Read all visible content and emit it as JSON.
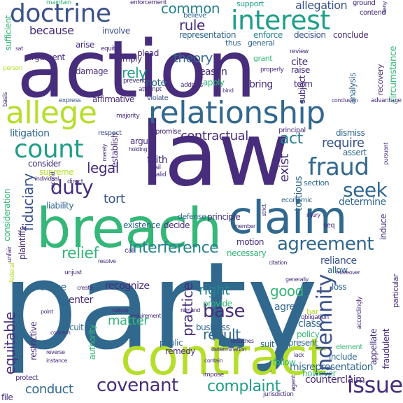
{
  "words": {
    "action": "action",
    "law": "law",
    "party": "party",
    "contract": "contract",
    "breach": "breach",
    "claim": "claim",
    "relationship": "relationship",
    "doctrine": "doctrine",
    "interest": "interest",
    "allege": "allege",
    "count": "count",
    "fraud": "fraud",
    "duty": "duty",
    "agreement": "agreement",
    "covenant": "covenant",
    "issue": "issue",
    "indemnity": "indemnity",
    "complaint": "complaint",
    "base": "base",
    "seek": "seek",
    "right": "right",
    "fiduciary": "fiduciary",
    "equitable": "equitable",
    "interference": "interference",
    "relief": "relief",
    "rely": "rely",
    "rule": "rule",
    "theory": "theory",
    "common": "common",
    "because": "because",
    "allegation": "allegation",
    "act": "act",
    "require": "require",
    "contractual": "contractual",
    "legal": "legal",
    "tort": "tort",
    "good": "good",
    "matter": "matter",
    "result": "result",
    "practice": "practice",
    "conduct": "conduct",
    "exist": "exist",
    "note": "note",
    "reason": "reason",
    "bring": "bring",
    "apply": "apply",
    "involve": "involve",
    "litigation": "litigation",
    "faith": "faith",
    "determine": "determine",
    "reliance": "reliance",
    "agree": "agree",
    "class": "class",
    "policy": "policy",
    "support": "support",
    "enforce": "enforce",
    "decision": "decision",
    "conclude": "conclude",
    "representation": "representation",
    "misrepresentation": "misrepresentation",
    "counterclaim": "counterclaim",
    "however": "however",
    "follow": "follow",
    "include": "include",
    "element": "element",
    "appellate": "appellate",
    "fraudulent": "fraudulent",
    "particular": "particular",
    "circumstance": "circumstance",
    "tortious": "tortious",
    "section": "section",
    "motion": "motion",
    "necessary": "necessary",
    "principle": "principle",
    "defense": "defense",
    "decide": "decide",
    "existence": "existence",
    "liability": "liability",
    "plaintiffs": "plaintiffs",
    "consideration": "consideration",
    "sufficient": "sufficient",
    "argument": "argument",
    "arise": "arise",
    "imply": "imply",
    "plead": "plead",
    "damage": "damage",
    "affirmative": "affirmative",
    "violate": "violate",
    "establish": "establish",
    "argue": "argue",
    "consider": "consider",
    "supreme": "supreme",
    "individual": "individual",
    "cause": "cause",
    "enter": "enter",
    "recognize": "recognize",
    "authority": "authority",
    "provide": "provide",
    "business": "business",
    "circuit": "circuit",
    "remedy": "remedy",
    "public": "public",
    "suit": "suit",
    "present": "present",
    "loss": "loss",
    "allow": "allow",
    "raise": "raise",
    "cite": "cite",
    "term": "term",
    "subject": "subject",
    "analysis": "analysis",
    "general": "general",
    "grant": "grant",
    "thus": "thus",
    "dismiss": "dismiss",
    "assert": "assert",
    "economic": "economic",
    "induce": "induce",
    "ground": "ground",
    "contend": "contend",
    "believe": "believe",
    "respect": "respect",
    "promise": "promise",
    "principal": "principal",
    "protect": "protect",
    "reverse": "reverse",
    "file": "file",
    "jurisdiction": "jurisdiction",
    "instance": "instance",
    "concern": "concern",
    "nature": "nature",
    "point": "point",
    "unjust": "unjust",
    "restrictive": "restrictive",
    "create": "create",
    "maintain": "maintain",
    "enforcement": "enforcement",
    "attempt": "attempt",
    "address": "address",
    "direct": "direct",
    "holding": "holding",
    "merely": "merely",
    "member": "member",
    "resolve": "resolve",
    "obligation": "obligation",
    "bar": "bar",
    "citation": "citation",
    "generally": "generally",
    "properly": "properly",
    "equity": "equity",
    "basis": "basis",
    "person": "person",
    "express": "express",
    "unfair": "unfair",
    "fail": "fail",
    "valid": "valid",
    "advantage": "advantage",
    "conclusion": "conclusion",
    "recovery": "recovery",
    "review": "review",
    "majority": "majority",
    "deny": "deny",
    "second": "second",
    "prevent": "prevent",
    "determination": "determination",
    "moreover": "moreover",
    "accordingly": "accordingly",
    "federal": "federal",
    "impose": "impose",
    "contain": "contain",
    "agent": "agent",
    "lack": "lack",
    "remand": "remand",
    "strict": "strict",
    "injury": "injury",
    "requirement": "requirement",
    "breaches": "breaches",
    "seq": "seq",
    "sat": "sat",
    "bind": "bind",
    "cal": "cal",
    "pursuant": "pursuant"
  },
  "colors": {
    "indigo": "#472d7b",
    "purple": "#440154",
    "blue": "#3b528b",
    "slate": "#31688e",
    "teal": "#26828e",
    "cyan": "#1f9e89",
    "green": "#35b779",
    "lime": "#6ece58",
    "yellowgreen": "#b5de2b",
    "yellow": "#d5e21a"
  }
}
